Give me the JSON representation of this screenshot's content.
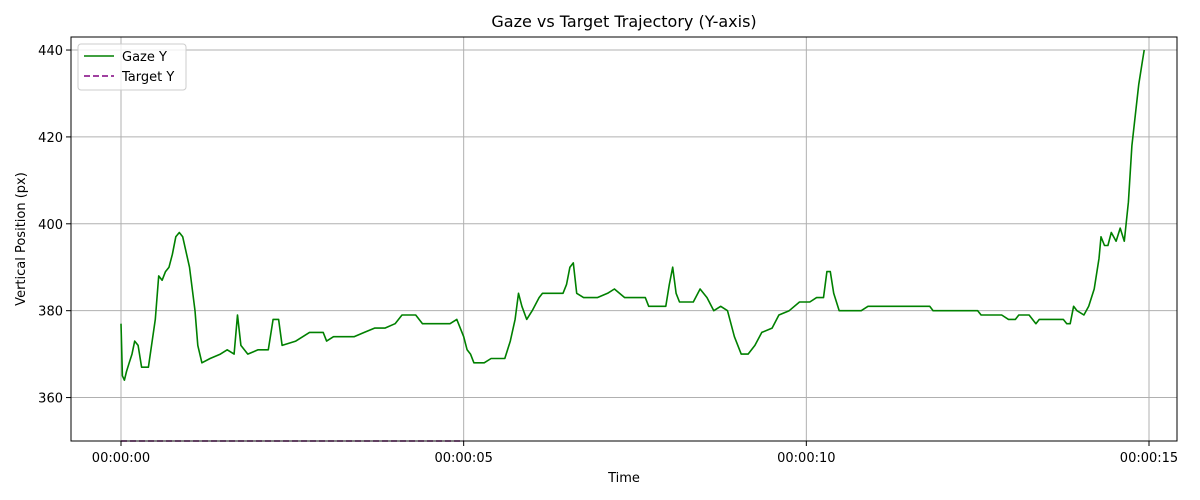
{
  "chart_data": {
    "type": "line",
    "title": "Gaze vs Target Trajectory (Y-axis)",
    "xlabel": "Time",
    "ylabel": "Vertical Position (px)",
    "xlim": [
      "00:00:00",
      "00:00:15"
    ],
    "ylim": [
      350,
      443
    ],
    "x_ticks": [
      "00:00:00",
      "00:00:05",
      "00:00:10",
      "00:00:15"
    ],
    "y_ticks": [
      360,
      380,
      400,
      420,
      440
    ],
    "grid": true,
    "legend": "upper left",
    "series": [
      {
        "name": "Gaze Y",
        "color": "#008000",
        "style": "solid",
        "points": [
          [
            "00:00:00.00",
            377
          ],
          [
            "00:00:00.02",
            365
          ],
          [
            "00:00:00.05",
            364
          ],
          [
            "00:00:00.08",
            366
          ],
          [
            "00:00:00.12",
            368
          ],
          [
            "00:00:00.16",
            370
          ],
          [
            "00:00:00.20",
            373
          ],
          [
            "00:00:00.25",
            372
          ],
          [
            "00:00:00.30",
            367
          ],
          [
            "00:00:00.40",
            367
          ],
          [
            "00:00:00.50",
            378
          ],
          [
            "00:00:00.55",
            388
          ],
          [
            "00:00:00.60",
            387
          ],
          [
            "00:00:00.65",
            389
          ],
          [
            "00:00:00.70",
            390
          ],
          [
            "00:00:00.75",
            393
          ],
          [
            "00:00:00.80",
            397
          ],
          [
            "00:00:00.85",
            398
          ],
          [
            "00:00:00.90",
            397
          ],
          [
            "00:00:01.00",
            390
          ],
          [
            "00:00:01.08",
            380
          ],
          [
            "00:00:01.12",
            372
          ],
          [
            "00:00:01.18",
            368
          ],
          [
            "00:00:01.30",
            369
          ],
          [
            "00:00:01.45",
            370
          ],
          [
            "00:00:01.55",
            371
          ],
          [
            "00:00:01.65",
            370
          ],
          [
            "00:00:01.70",
            379
          ],
          [
            "00:00:01.75",
            372
          ],
          [
            "00:00:01.85",
            370
          ],
          [
            "00:00:02.00",
            371
          ],
          [
            "00:00:02.15",
            371
          ],
          [
            "00:00:02.22",
            378
          ],
          [
            "00:00:02.30",
            378
          ],
          [
            "00:00:02.35",
            372
          ],
          [
            "00:00:02.55",
            373
          ],
          [
            "00:00:02.75",
            375
          ],
          [
            "00:00:02.95",
            375
          ],
          [
            "00:00:03.00",
            373
          ],
          [
            "00:00:03.10",
            374
          ],
          [
            "00:00:03.40",
            374
          ],
          [
            "00:00:03.55",
            375
          ],
          [
            "00:00:03.70",
            376
          ],
          [
            "00:00:03.85",
            376
          ],
          [
            "00:00:04.00",
            377
          ],
          [
            "00:00:04.10",
            379
          ],
          [
            "00:00:04.30",
            379
          ],
          [
            "00:00:04.40",
            377
          ],
          [
            "00:00:04.80",
            377
          ],
          [
            "00:00:04.90",
            378
          ],
          [
            "00:00:05.00",
            374
          ],
          [
            "00:00:05.05",
            371
          ],
          [
            "00:00:05.10",
            370
          ],
          [
            "00:00:05.15",
            368
          ],
          [
            "00:00:05.30",
            368
          ],
          [
            "00:00:05.40",
            369
          ],
          [
            "00:00:05.60",
            369
          ],
          [
            "00:00:05.68",
            373
          ],
          [
            "00:00:05.75",
            378
          ],
          [
            "00:00:05.80",
            384
          ],
          [
            "00:00:05.85",
            381
          ],
          [
            "00:00:05.92",
            378
          ],
          [
            "00:00:06.00",
            380
          ],
          [
            "00:00:06.10",
            383
          ],
          [
            "00:00:06.15",
            384
          ],
          [
            "00:00:06.45",
            384
          ],
          [
            "00:00:06.50",
            386
          ],
          [
            "00:00:06.55",
            390
          ],
          [
            "00:00:06.60",
            391
          ],
          [
            "00:00:06.65",
            384
          ],
          [
            "00:00:06.75",
            383
          ],
          [
            "00:00:06.95",
            383
          ],
          [
            "00:00:07.10",
            384
          ],
          [
            "00:00:07.20",
            385
          ],
          [
            "00:00:07.35",
            383
          ],
          [
            "00:00:07.65",
            383
          ],
          [
            "00:00:07.70",
            381
          ],
          [
            "00:00:07.95",
            381
          ],
          [
            "00:00:08.00",
            386
          ],
          [
            "00:00:08.05",
            390
          ],
          [
            "00:00:08.10",
            384
          ],
          [
            "00:00:08.15",
            382
          ],
          [
            "00:00:08.35",
            382
          ],
          [
            "00:00:08.45",
            385
          ],
          [
            "00:00:08.55",
            383
          ],
          [
            "00:00:08.65",
            380
          ],
          [
            "00:00:08.75",
            381
          ],
          [
            "00:00:08.85",
            380
          ],
          [
            "00:00:08.95",
            374
          ],
          [
            "00:00:09.05",
            370
          ],
          [
            "00:00:09.15",
            370
          ],
          [
            "00:00:09.25",
            372
          ],
          [
            "00:00:09.35",
            375
          ],
          [
            "00:00:09.50",
            376
          ],
          [
            "00:00:09.60",
            379
          ],
          [
            "00:00:09.75",
            380
          ],
          [
            "00:00:09.90",
            382
          ],
          [
            "00:00:10.05",
            382
          ],
          [
            "00:00:10.15",
            383
          ],
          [
            "00:00:10.25",
            383
          ],
          [
            "00:00:10.30",
            389
          ],
          [
            "00:00:10.35",
            389
          ],
          [
            "00:00:10.40",
            384
          ],
          [
            "00:00:10.48",
            380
          ],
          [
            "00:00:10.80",
            380
          ],
          [
            "00:00:10.90",
            381
          ],
          [
            "00:00:11.20",
            381
          ],
          [
            "00:00:11.50",
            381
          ],
          [
            "00:00:11.80",
            381
          ],
          [
            "00:00:11.85",
            380
          ],
          [
            "00:00:12.10",
            380
          ],
          [
            "00:00:12.30",
            380
          ],
          [
            "00:00:12.50",
            380
          ],
          [
            "00:00:12.55",
            379
          ],
          [
            "00:00:12.85",
            379
          ],
          [
            "00:00:12.95",
            378
          ],
          [
            "00:00:13.05",
            378
          ],
          [
            "00:00:13.10",
            379
          ],
          [
            "00:00:13.25",
            379
          ],
          [
            "00:00:13.35",
            377
          ],
          [
            "00:00:13.40",
            378
          ],
          [
            "00:00:13.75",
            378
          ],
          [
            "00:00:13.80",
            377
          ],
          [
            "00:00:13.85",
            377
          ],
          [
            "00:00:13.90",
            381
          ],
          [
            "00:00:13.95",
            380
          ],
          [
            "00:00:14.05",
            379
          ],
          [
            "00:00:14.12",
            381
          ],
          [
            "00:00:14.20",
            385
          ],
          [
            "00:00:14.27",
            392
          ],
          [
            "00:00:14.30",
            397
          ],
          [
            "00:00:14.35",
            395
          ],
          [
            "00:00:14.40",
            395
          ],
          [
            "00:00:14.45",
            398
          ],
          [
            "00:00:14.52",
            396
          ],
          [
            "00:00:14.58",
            399
          ],
          [
            "00:00:14.64",
            396
          ],
          [
            "00:00:14.70",
            405
          ],
          [
            "00:00:14.75",
            418
          ],
          [
            "00:00:14.80",
            425
          ],
          [
            "00:00:14.85",
            432
          ],
          [
            "00:00:14.90",
            437
          ],
          [
            "00:00:14.93",
            440
          ]
        ]
      },
      {
        "name": "Target Y",
        "color": "#800080",
        "style": "dashed",
        "points": [
          [
            "00:00:00.00",
            350
          ],
          [
            "00:00:05.00",
            350
          ]
        ]
      }
    ]
  }
}
